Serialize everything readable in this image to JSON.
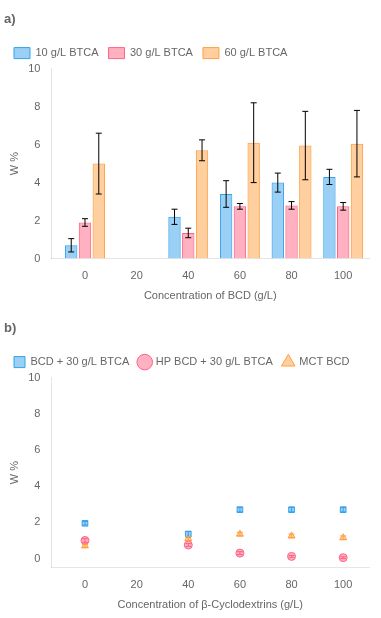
{
  "chart_data": [
    {
      "type": "bar",
      "title": "a)",
      "xlabel": "Concentration of BCD (g/L)",
      "ylabel": "W %",
      "x": [
        0,
        40,
        60,
        80,
        100
      ],
      "xlim": [
        -13,
        110
      ],
      "xticks": [
        0,
        20,
        40,
        60,
        80,
        100
      ],
      "ylim": [
        0,
        10
      ],
      "yticks": [
        0,
        2,
        4,
        6,
        8,
        10
      ],
      "grid": false,
      "legend": "upper left",
      "series": [
        {
          "name": "10 g/L BTCA",
          "values": [
            0.7,
            2.2,
            3.4,
            4.0,
            4.3
          ],
          "errors": [
            0.35,
            0.4,
            0.7,
            0.5,
            0.4
          ]
        },
        {
          "name": "30 g/L BTCA",
          "values": [
            1.9,
            1.35,
            2.75,
            2.8,
            2.75
          ],
          "errors": [
            0.2,
            0.25,
            0.15,
            0.2,
            0.2
          ]
        },
        {
          "name": "60 g/L BTCA",
          "values": [
            5.0,
            5.7,
            6.1,
            5.95,
            6.05
          ],
          "errors": [
            1.6,
            0.55,
            2.1,
            1.8,
            1.75
          ]
        }
      ]
    },
    {
      "type": "scatter",
      "title": "b)",
      "xlabel": "Concentration of β-Cyclodextrins (g/L)",
      "ylabel": "W %",
      "x": [
        0,
        40,
        60,
        80,
        100
      ],
      "xlim": [
        -13,
        110
      ],
      "xticks": [
        0,
        20,
        40,
        60,
        80,
        100
      ],
      "ylim": [
        -0.5,
        10
      ],
      "yticks": [
        0,
        2,
        4,
        6,
        8,
        10
      ],
      "grid": false,
      "legend": "upper left",
      "series": [
        {
          "name": "BCD + 30 g/L BTCA",
          "marker": "square",
          "values": [
            1.95,
            1.35,
            2.7,
            2.7,
            2.7
          ],
          "errors": [
            0.1,
            0.15,
            0.12,
            0.12,
            0.12
          ]
        },
        {
          "name": "HP BCD + 30 g/L BTCA",
          "marker": "circle",
          "values": [
            1.0,
            0.75,
            0.3,
            0.12,
            0.05
          ],
          "errors": [
            0.1,
            0.08,
            0.08,
            0.05,
            0.05
          ]
        },
        {
          "name": "MCT BCD",
          "marker": "triangle",
          "values": [
            0.7,
            1.1,
            1.35,
            1.25,
            1.15
          ],
          "errors": [
            0.08,
            0.12,
            0.1,
            0.1,
            0.1
          ]
        }
      ]
    }
  ]
}
